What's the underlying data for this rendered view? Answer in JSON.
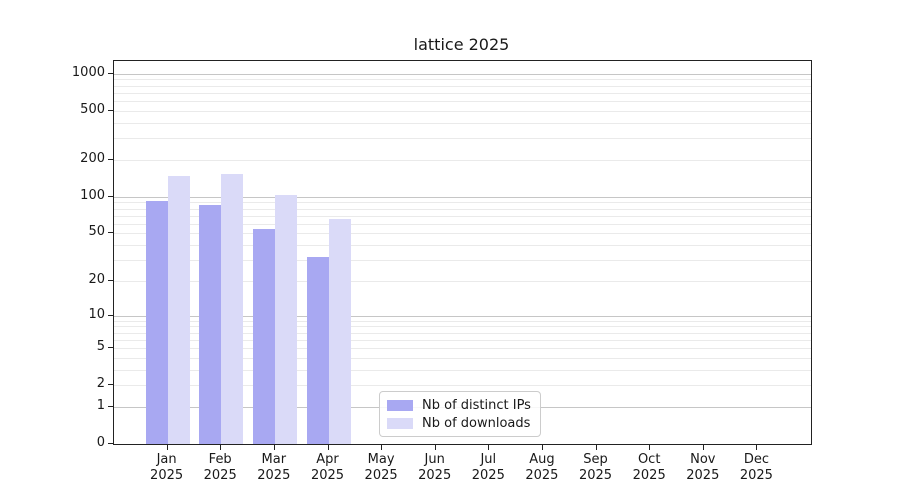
{
  "figure": {
    "title": "lattice 2025",
    "background": "#ffffff"
  },
  "chart_data": {
    "type": "bar",
    "title": "lattice 2025",
    "yscale": "log1p",
    "ylim": [
      0,
      1290
    ],
    "grid": true,
    "yticks": [
      0,
      1,
      2,
      5,
      10,
      20,
      50,
      100,
      200,
      500,
      1000
    ],
    "minor_grid_values": [
      2,
      3,
      4,
      5,
      6,
      7,
      8,
      9,
      20,
      30,
      40,
      50,
      60,
      70,
      80,
      90,
      200,
      300,
      400,
      500,
      600,
      700,
      800,
      900
    ],
    "major_grid_values": [
      1,
      10,
      100,
      1000
    ],
    "categories": [
      {
        "month": "Jan",
        "year": "2025"
      },
      {
        "month": "Feb",
        "year": "2025"
      },
      {
        "month": "Mar",
        "year": "2025"
      },
      {
        "month": "Apr",
        "year": "2025"
      },
      {
        "month": "May",
        "year": "2025"
      },
      {
        "month": "Jun",
        "year": "2025"
      },
      {
        "month": "Jul",
        "year": "2025"
      },
      {
        "month": "Aug",
        "year": "2025"
      },
      {
        "month": "Sep",
        "year": "2025"
      },
      {
        "month": "Oct",
        "year": "2025"
      },
      {
        "month": "Nov",
        "year": "2025"
      },
      {
        "month": "Dec",
        "year": "2025"
      }
    ],
    "series": [
      {
        "name": "Nb of distinct IPs",
        "color": "#a8a8f2",
        "values": [
          93,
          86,
          54,
          32,
          0,
          0,
          0,
          0,
          0,
          0,
          0,
          0
        ]
      },
      {
        "name": "Nb of downloads",
        "color": "#dadaf8",
        "values": [
          147,
          152,
          103,
          65,
          0,
          0,
          0,
          0,
          0,
          0,
          0,
          0
        ]
      }
    ],
    "legend": {
      "position": "lower center",
      "items": [
        "Nb of distinct IPs",
        "Nb of downloads"
      ]
    }
  }
}
